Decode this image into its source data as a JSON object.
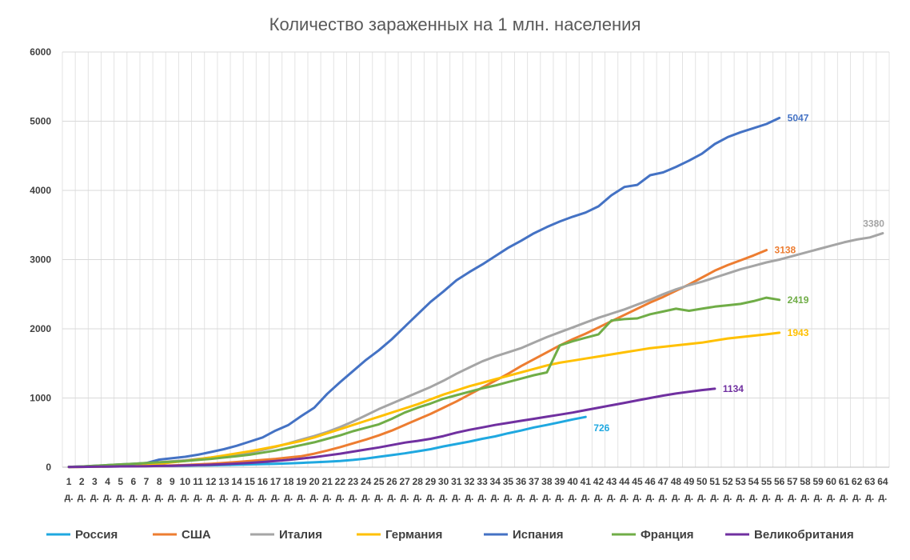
{
  "chart_data": {
    "type": "line",
    "title": "Количество зараженных на 1 млн. населения",
    "xlabel": "",
    "ylabel": "",
    "ylim": [
      0,
      6000
    ],
    "yticks": [
      0,
      1000,
      2000,
      3000,
      4000,
      5000,
      6000
    ],
    "x_count": 64,
    "x_tick_suffix": "д.",
    "grid": true,
    "legend_position": "bottom",
    "series": [
      {
        "name": "Россия",
        "color": "#1FA8E0",
        "end_label": "726",
        "values": [
          5,
          6,
          8,
          10,
          12,
          14,
          16,
          18,
          20,
          22,
          25,
          28,
          32,
          36,
          40,
          45,
          50,
          55,
          62,
          70,
          80,
          90,
          105,
          125,
          150,
          175,
          200,
          230,
          260,
          300,
          335,
          370,
          410,
          445,
          490,
          530,
          575,
          610,
          650,
          690,
          726
        ]
      },
      {
        "name": "США",
        "color": "#ED7D31",
        "end_label": "3138",
        "values": [
          5,
          6,
          8,
          10,
          12,
          14,
          16,
          20,
          25,
          32,
          40,
          50,
          62,
          75,
          90,
          105,
          120,
          140,
          160,
          195,
          240,
          290,
          345,
          400,
          460,
          530,
          610,
          690,
          770,
          860,
          950,
          1050,
          1150,
          1250,
          1350,
          1460,
          1560,
          1660,
          1760,
          1850,
          1930,
          2020,
          2110,
          2200,
          2290,
          2380,
          2460,
          2550,
          2640,
          2740,
          2840,
          2920,
          2990,
          3060,
          3138
        ]
      },
      {
        "name": "Италия",
        "color": "#A5A5A5",
        "end_label": "3380",
        "values": [
          5,
          8,
          15,
          22,
          30,
          40,
          55,
          70,
          85,
          100,
          120,
          140,
          160,
          185,
          210,
          250,
          295,
          345,
          400,
          450,
          510,
          580,
          660,
          750,
          840,
          920,
          1000,
          1080,
          1160,
          1250,
          1350,
          1440,
          1530,
          1600,
          1660,
          1720,
          1800,
          1880,
          1950,
          2020,
          2090,
          2160,
          2220,
          2280,
          2350,
          2420,
          2500,
          2570,
          2630,
          2680,
          2740,
          2800,
          2860,
          2910,
          2960,
          3000,
          3050,
          3100,
          3150,
          3200,
          3250,
          3290,
          3320,
          3380
        ]
      },
      {
        "name": "Германия",
        "color": "#FFC000",
        "end_label": "1943",
        "values": [
          3,
          5,
          8,
          12,
          18,
          25,
          35,
          50,
          70,
          90,
          115,
          140,
          170,
          200,
          230,
          265,
          300,
          340,
          380,
          430,
          490,
          550,
          610,
          670,
          730,
          790,
          850,
          910,
          980,
          1050,
          1110,
          1170,
          1220,
          1270,
          1320,
          1370,
          1420,
          1470,
          1510,
          1540,
          1570,
          1600,
          1630,
          1660,
          1690,
          1720,
          1740,
          1760,
          1780,
          1800,
          1830,
          1860,
          1880,
          1900,
          1920,
          1943
        ]
      },
      {
        "name": "Испания",
        "color": "#4472C4",
        "end_label": "5047",
        "values": [
          5,
          10,
          20,
          30,
          40,
          50,
          60,
          110,
          130,
          150,
          180,
          220,
          260,
          310,
          370,
          430,
          530,
          610,
          740,
          860,
          1060,
          1230,
          1390,
          1550,
          1690,
          1850,
          2030,
          2210,
          2390,
          2540,
          2700,
          2820,
          2930,
          3050,
          3170,
          3270,
          3380,
          3470,
          3550,
          3620,
          3680,
          3770,
          3930,
          4050,
          4080,
          4220,
          4260,
          4340,
          4430,
          4530,
          4670,
          4770,
          4840,
          4900,
          4960,
          5047
        ]
      },
      {
        "name": "Франция",
        "color": "#70AD47",
        "end_label": "2419",
        "values": [
          5,
          10,
          20,
          30,
          40,
          50,
          60,
          70,
          80,
          90,
          105,
          120,
          140,
          160,
          180,
          210,
          240,
          280,
          320,
          360,
          410,
          460,
          520,
          570,
          620,
          700,
          790,
          860,
          920,
          990,
          1040,
          1090,
          1140,
          1180,
          1230,
          1280,
          1330,
          1370,
          1760,
          1820,
          1870,
          1920,
          2120,
          2140,
          2150,
          2210,
          2250,
          2290,
          2260,
          2290,
          2320,
          2340,
          2360,
          2400,
          2450,
          2419
        ]
      },
      {
        "name": "Великобритания",
        "color": "#7030A0",
        "end_label": "1134",
        "values": [
          3,
          5,
          7,
          9,
          11,
          13,
          15,
          18,
          21,
          25,
          30,
          36,
          44,
          52,
          62,
          75,
          90,
          105,
          125,
          145,
          170,
          195,
          225,
          255,
          285,
          320,
          355,
          380,
          410,
          450,
          500,
          540,
          575,
          610,
          640,
          670,
          700,
          730,
          760,
          790,
          825,
          860,
          895,
          930,
          965,
          1000,
          1035,
          1065,
          1090,
          1115,
          1134
        ]
      }
    ]
  }
}
